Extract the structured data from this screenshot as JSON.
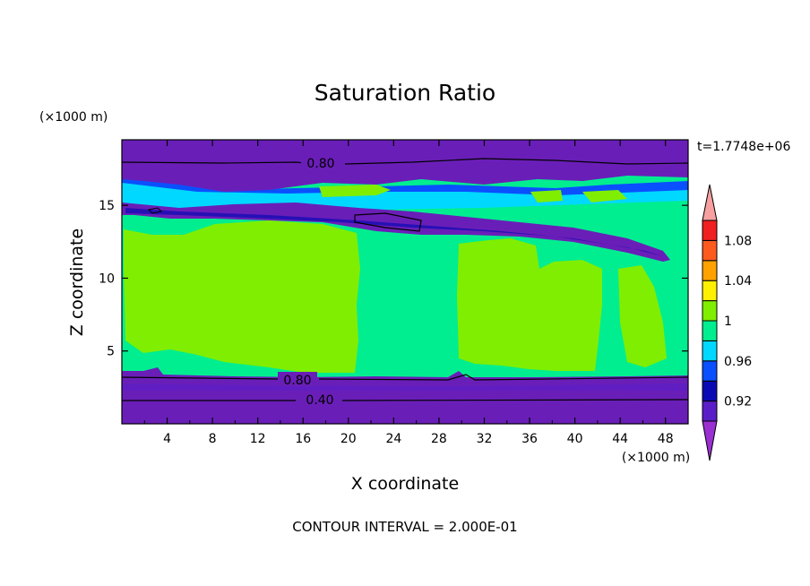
{
  "chart_data": {
    "type": "heatmap",
    "title": "Saturation Ratio",
    "xlabel": "X coordinate",
    "ylabel": "Z coordinate",
    "x_unit_label": "(×1000 m)",
    "y_unit_label": "(×1000 m)",
    "time_label": "t=1.7748e+06",
    "footer": "CONTOUR INTERVAL = 2.000E-01",
    "xlim": [
      0,
      50
    ],
    "ylim": [
      0,
      19.5
    ],
    "x_ticks": [
      4,
      8,
      12,
      16,
      20,
      24,
      28,
      32,
      36,
      40,
      44,
      48
    ],
    "y_ticks": [
      5,
      10,
      15
    ],
    "grid": false,
    "contour_levels": [
      0.9,
      0.92,
      0.94,
      0.96,
      0.98,
      1.0,
      1.02,
      1.04,
      1.06,
      1.08,
      1.1
    ],
    "contour_line_labels": [
      {
        "text": "0.80",
        "x": 17,
        "z": 18.3
      },
      {
        "text": "0.80",
        "x": 15.5,
        "z": 3.0
      },
      {
        "text": "0.40",
        "x": 17,
        "z": 1.7
      }
    ],
    "colorbar": {
      "tick_labels": [
        "0.92",
        "0.96",
        "1",
        "1.04",
        "1.08"
      ],
      "colors": [
        "#9a2fd2",
        "#5a1ec8",
        "#0a0ab4",
        "#0a50ff",
        "#00d8ff",
        "#00ee90",
        "#80ee00",
        "#fff000",
        "#ffa200",
        "#ff5a1e",
        "#f02020",
        "#f8a0a0"
      ]
    },
    "regions": [
      {
        "level": "<0.90",
        "description": "lower boundary layer z 0–3.3",
        "color": "#6a1eb8"
      },
      {
        "level": "<0.90",
        "description": "upper layer z 18–19.5",
        "color": "#6a1eb8"
      },
      {
        "level": "~0.99",
        "description": "middle troposphere z 3.5–13.5",
        "color": "#00ee90"
      },
      {
        "level": "~1.01",
        "description": "cloud columns",
        "color": "#80ee00"
      },
      {
        "level": "<0.90",
        "description": "dry tongue z 11–16",
        "color": "#6a1eb8"
      }
    ]
  }
}
